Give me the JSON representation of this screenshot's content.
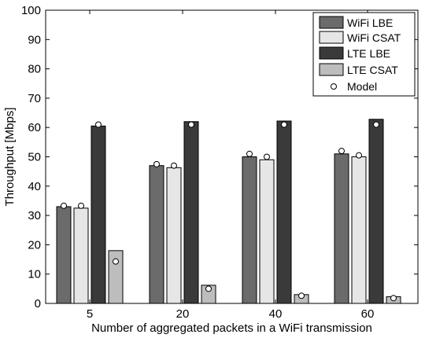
{
  "chart_data": {
    "type": "bar",
    "xlabel": "Number of aggregated packets in a WiFi transmission",
    "ylabel": "Throughput [Mbps]",
    "ylim": [
      0,
      100
    ],
    "yticks": [
      0,
      10,
      20,
      30,
      40,
      50,
      60,
      70,
      80,
      90,
      100
    ],
    "categories": [
      "5",
      "20",
      "40",
      "60"
    ],
    "series": [
      {
        "name": "WiFi LBE",
        "color": "#6b6b6b",
        "values": [
          33,
          47,
          50,
          51
        ]
      },
      {
        "name": "WiFi CSAT",
        "color": "#e6e6e6",
        "values": [
          32.5,
          46.3,
          49,
          50
        ]
      },
      {
        "name": "LTE LBE",
        "color": "#3a3a3a",
        "values": [
          60.5,
          62,
          62.2,
          62.8
        ]
      },
      {
        "name": "LTE CSAT",
        "color": "#bdbdbd",
        "values": [
          18,
          6.2,
          3,
          2.3
        ]
      }
    ],
    "model": {
      "name": "Model",
      "values": [
        [
          33.3,
          33.3,
          61,
          14.3
        ],
        [
          47.5,
          47,
          61,
          5
        ],
        [
          51,
          50,
          61,
          2.6
        ],
        [
          52,
          50.5,
          61,
          1.8
        ]
      ]
    },
    "legend": {
      "position": "top-right"
    },
    "grid": false
  }
}
